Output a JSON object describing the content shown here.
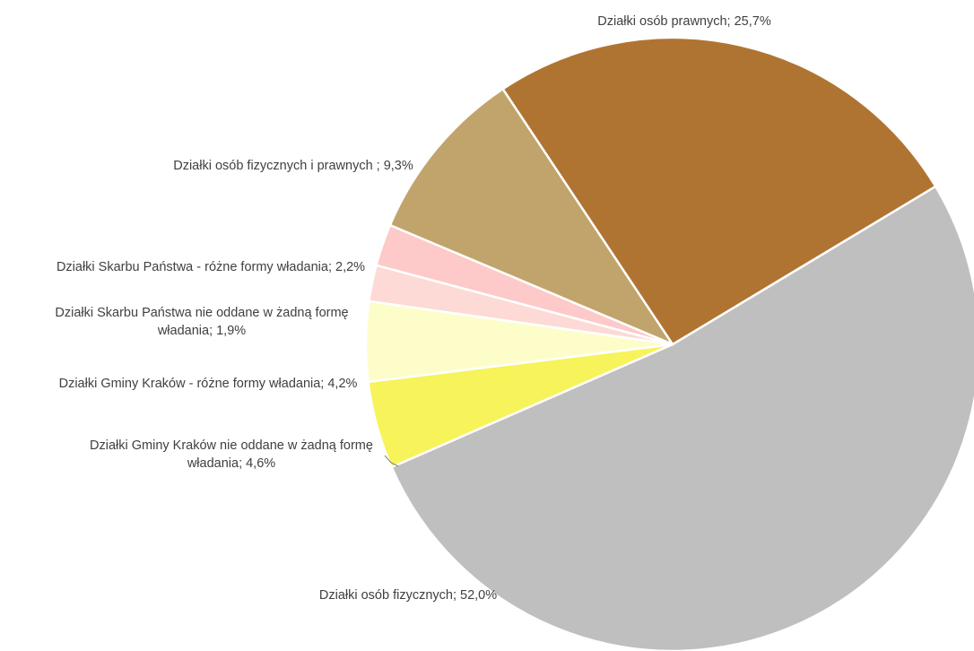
{
  "chart_data": {
    "type": "pie",
    "title": "",
    "start_angle_deg": 31,
    "direction": "clockwise",
    "slices": [
      {
        "label": "Działki osób fizycznych; 52,0%",
        "value": 52.0,
        "color": "#bfbfbf"
      },
      {
        "label": "Działki Gminy Kraków nie oddane w żadną formę władania; 4,6%",
        "label_lines": [
          "Działki Gminy Kraków nie oddane w żadną formę",
          "władania; 4,6%"
        ],
        "value": 4.6,
        "color": "#f7f35a"
      },
      {
        "label": "Działki Gminy Kraków - różne formy władania; 4,2%",
        "value": 4.2,
        "color": "#fdfdca"
      },
      {
        "label": "Działki Skarbu Państwa nie oddane w żadną formę władania; 1,9%",
        "label_lines": [
          "Działki Skarbu Państwa nie oddane w żadną formę",
          "władania; 1,9%"
        ],
        "value": 1.9,
        "color": "#fddad5"
      },
      {
        "label": "Działki Skarbu Państwa - różne formy władania; 2,2%",
        "value": 2.2,
        "color": "#fdc9c9"
      },
      {
        "label": "Działki osób fizycznych i prawnych ; 9,3%",
        "value": 9.3,
        "color": "#c1a46b"
      },
      {
        "label": "Działki osób prawnych; 25,7%",
        "value": 25.7,
        "color": "#b07432"
      }
    ]
  }
}
